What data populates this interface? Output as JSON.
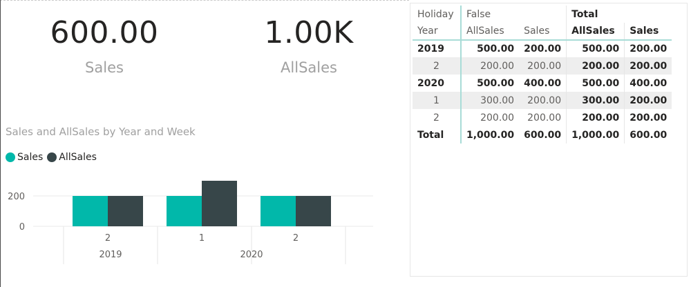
{
  "cards": {
    "sales": {
      "value": "600.00",
      "label": "Sales"
    },
    "allsales": {
      "value": "1.00K",
      "label": "AllSales"
    }
  },
  "chart": {
    "title": "Sales and AllSales by Year and Week",
    "legend": [
      {
        "name": "Sales",
        "color": "#01b8aa"
      },
      {
        "name": "AllSales",
        "color": "#374649"
      }
    ]
  },
  "chart_data": {
    "type": "bar",
    "title": "Sales and AllSales by Year and Week",
    "categories": [
      {
        "week": "2",
        "year": "2019"
      },
      {
        "week": "1",
        "year": "2020"
      },
      {
        "week": "2",
        "year": "2020"
      }
    ],
    "groups": [
      {
        "label": "2019",
        "count": 1
      },
      {
        "label": "2020",
        "count": 2
      }
    ],
    "series": [
      {
        "name": "Sales",
        "color": "#01b8aa",
        "values": [
          200,
          200,
          200
        ]
      },
      {
        "name": "AllSales",
        "color": "#374649",
        "values": [
          200,
          300,
          200
        ]
      }
    ],
    "yticks": [
      0,
      200
    ],
    "ylim": [
      0,
      300
    ],
    "grid": true,
    "legend": "top-left"
  },
  "matrix": {
    "header1": {
      "col0": "Holiday",
      "group1": "False",
      "group2": "Total"
    },
    "header2": {
      "col0": "Year",
      "c1": "AllSales",
      "c2": "Sales",
      "c3": "AllSales",
      "c4": "Sales"
    },
    "rows": [
      {
        "label": "2019",
        "v1": "500.00",
        "v2": "200.00",
        "v3": "500.00",
        "v4": "200.00"
      },
      {
        "label": "2",
        "v1": "200.00",
        "v2": "200.00",
        "v3": "200.00",
        "v4": "200.00"
      },
      {
        "label": "2020",
        "v1": "500.00",
        "v2": "400.00",
        "v3": "500.00",
        "v4": "400.00"
      },
      {
        "label": "1",
        "v1": "300.00",
        "v2": "200.00",
        "v3": "300.00",
        "v4": "200.00"
      },
      {
        "label": "2",
        "v1": "200.00",
        "v2": "200.00",
        "v3": "200.00",
        "v4": "200.00"
      }
    ],
    "total": {
      "label": "Total",
      "v1": "1,000.00",
      "v2": "600.00",
      "v3": "1,000.00",
      "v4": "600.00"
    }
  }
}
